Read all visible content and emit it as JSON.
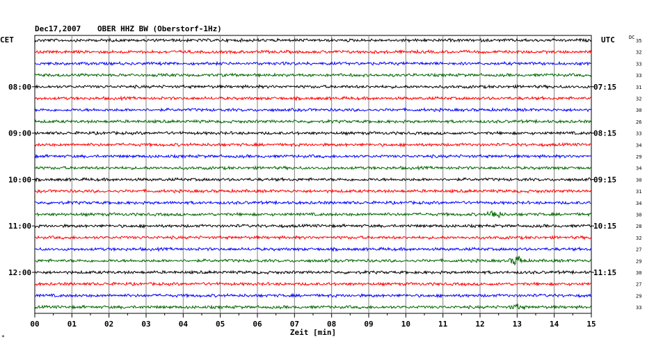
{
  "header": {
    "date": "Dec17,2007",
    "station": "OBER HHZ BW (Oberstorf-1Hz)"
  },
  "left_timezone": "CET",
  "right_timezone": "UTC",
  "dc_label": "DC",
  "footer_mark": "*",
  "chart_data": {
    "type": "line",
    "title": "",
    "xlabel": "Zeit [min]",
    "ylabel": "",
    "xlim": [
      0,
      15
    ],
    "x_ticks": [
      "00",
      "01",
      "02",
      "03",
      "04",
      "05",
      "06",
      "07",
      "08",
      "09",
      "10",
      "11",
      "12",
      "13",
      "14",
      "15"
    ],
    "grid": true,
    "trace_count": 24,
    "trace_colors": [
      "#000000",
      "#ff0000",
      "#0000ff",
      "#006600"
    ],
    "left_hour_labels": [
      {
        "trace": 4,
        "label": "08:00"
      },
      {
        "trace": 8,
        "label": "09:00"
      },
      {
        "trace": 12,
        "label": "10:00"
      },
      {
        "trace": 16,
        "label": "11:00"
      },
      {
        "trace": 20,
        "label": "12:00"
      }
    ],
    "right_hour_labels": [
      {
        "trace": 4,
        "label": "07:15"
      },
      {
        "trace": 8,
        "label": "08:15"
      },
      {
        "trace": 12,
        "label": "09:15"
      },
      {
        "trace": 16,
        "label": "10:15"
      },
      {
        "trace": 20,
        "label": "11:15"
      }
    ],
    "dc_offsets": [
      "35",
      "32",
      "33",
      "33",
      "31",
      "32",
      "30",
      "26",
      "33",
      "34",
      "29",
      "34",
      "30",
      "31",
      "34",
      "30",
      "28",
      "32",
      "27",
      "29",
      "30",
      "27",
      "29",
      "33"
    ],
    "events": [
      {
        "trace": 15,
        "minute": 12.4,
        "amplitude": 6
      },
      {
        "trace": 19,
        "minute": 13.0,
        "amplitude": 7
      },
      {
        "trace": 23,
        "minute": 13.0,
        "amplitude": 3
      }
    ]
  }
}
